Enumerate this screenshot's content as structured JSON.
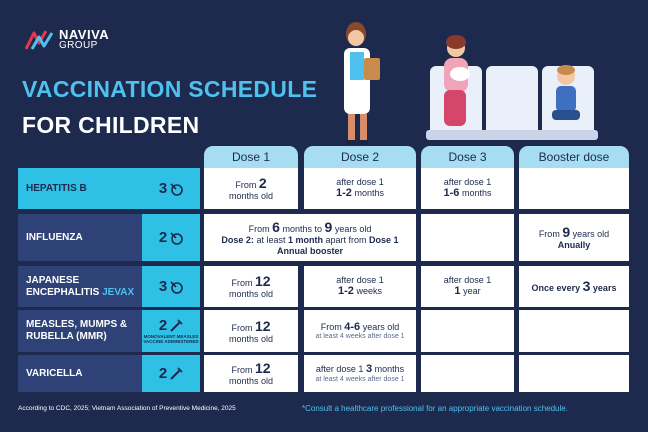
{
  "brand": {
    "name": "NAVIVA",
    "sub": "GROUP"
  },
  "title": {
    "line1": "VACCINATION SCHEDULE",
    "line2": "FOR CHILDREN"
  },
  "columns": [
    "Dose 1",
    "Dose 2",
    "Dose 3",
    "Booster dose"
  ],
  "rows": [
    {
      "name": "HEPATITIS B",
      "doses": "3",
      "dose1": {
        "pre": "From",
        "num": "2",
        "post": "months old"
      },
      "dose2": {
        "pre": "after dose 1",
        "num": "1-2",
        "post": "months"
      },
      "dose3": {
        "pre": "after dose 1",
        "num": "1-6",
        "post": "months"
      }
    },
    {
      "name": "INFLUENZA",
      "doses": "2",
      "span": {
        "from": "From",
        "n1": "6",
        "u1": "months",
        "to": "to",
        "n2": "9",
        "u2": "years old",
        "line2a": "Dose 2:",
        "line2b": "at least",
        "line2c": "1 month",
        "line2d": "apart from",
        "line2e": "Dose 1",
        "line3": "Annual booster"
      },
      "booster": {
        "pre": "From",
        "num": "9",
        "post": "years old",
        "line2": "Anually"
      }
    },
    {
      "name1": "JAPANESE",
      "name2": "ENCEPHALITIS",
      "name3": "JEVAX",
      "doses": "3",
      "dose1": {
        "pre": "From",
        "num": "12",
        "post": "months old"
      },
      "dose2": {
        "pre": "after dose 1",
        "num": "1-2",
        "post": "weeks"
      },
      "dose3": {
        "pre": "after dose 1",
        "num": "1",
        "post": "year"
      },
      "booster": {
        "pre": "Once every",
        "num": "3",
        "post": "years"
      }
    },
    {
      "name1": "MEASLES, MUMPS &",
      "name2": "RUBELLA (MMR)",
      "doses": "2",
      "note": "MONOVALENT MEASLES VACCINE ADMINISTERED",
      "dose1": {
        "pre": "From",
        "num": "12",
        "post": "months old"
      },
      "dose2": {
        "pre": "From",
        "num": "4-6",
        "post": "years old",
        "sub": "at least 4 weeks after dose 1"
      }
    },
    {
      "name": "VARICELLA",
      "doses": "2",
      "dose1": {
        "pre": "From",
        "num": "12",
        "post": "months old"
      },
      "dose2": {
        "pre": "after dose 1",
        "num": "3",
        "post": "months",
        "sub": "at least 4 weeks after dose 1"
      }
    }
  ],
  "footer": {
    "source": "According to CDC, 2025; Vietnam Association of Preventive Medicine, 2025",
    "note": "*Consult a healthcare professional for an appropriate vaccination schedule."
  },
  "colors": {
    "navy": "#1d2a4d",
    "cyan": "#2fc0e6",
    "light": "#a6ddf3",
    "label": "#2e4277"
  }
}
